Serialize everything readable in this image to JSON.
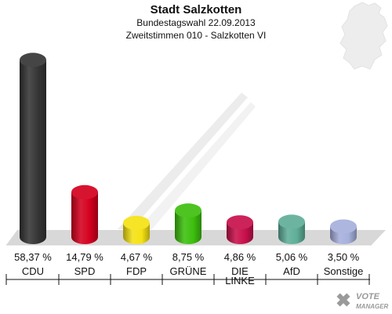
{
  "header": {
    "title": "Stadt Salzkotten",
    "subtitle": "Bundestagswahl 22.09.2013",
    "district": "Zweitstimmen 010 - Salzkotten VI"
  },
  "logo": {
    "line1": "VOTE",
    "line2": "MANAGER"
  },
  "icons": {
    "map": "germany-map-icon",
    "logo": "vote-manager-logo"
  },
  "chart_data": {
    "type": "bar",
    "title": "Stadt Salzkotten",
    "xlabel": "",
    "ylabel": "",
    "ylim": [
      0,
      60
    ],
    "categories": [
      "CDU",
      "SPD",
      "FDP",
      "GRÜNE",
      "DIE LINKE",
      "AfD",
      "Sonstige"
    ],
    "category_lines": [
      [
        "CDU"
      ],
      [
        "SPD"
      ],
      [
        "FDP"
      ],
      [
        "GRÜNE"
      ],
      [
        "DIE",
        "LINKE"
      ],
      [
        "AfD"
      ],
      [
        "Sonstige"
      ]
    ],
    "values": [
      58.37,
      14.79,
      4.67,
      8.75,
      4.86,
      5.06,
      3.5
    ],
    "value_labels": [
      "58,37 %",
      "14,79 %",
      "4,67 %",
      "8,75 %",
      "4,86 %",
      "5,06 %",
      "3,50 %"
    ],
    "colors": [
      "#353535",
      "#d4001e",
      "#f5e214",
      "#3dbf0e",
      "#c8104c",
      "#5fae98",
      "#a6b0dc"
    ],
    "grid": false,
    "legend": "none"
  }
}
